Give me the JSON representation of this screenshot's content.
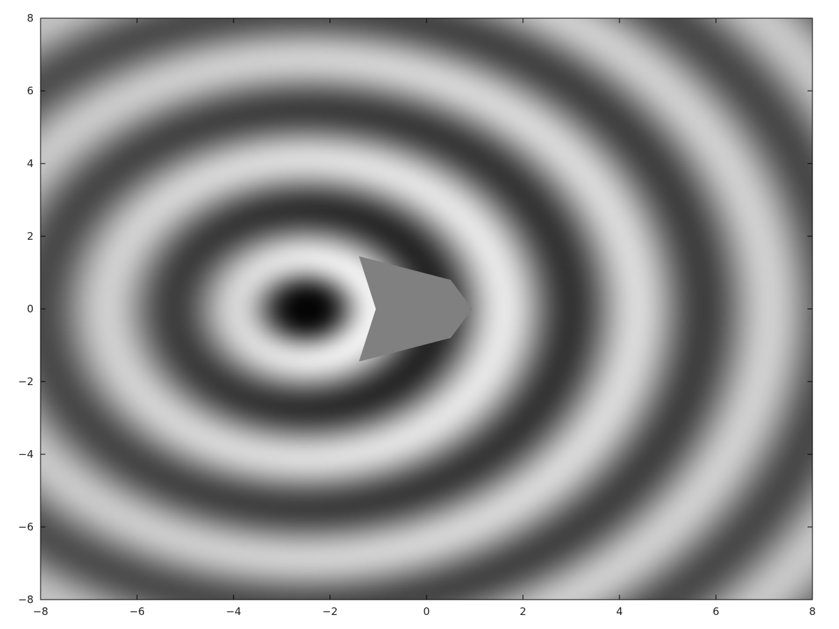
{
  "chart_data": {
    "type": "heatmap",
    "title": "",
    "xlabel": "",
    "ylabel": "",
    "xlim": [
      -8,
      8
    ],
    "ylim": [
      -8,
      8
    ],
    "x_ticks": [
      -8,
      -6,
      -4,
      -2,
      0,
      2,
      4,
      6,
      8
    ],
    "y_ticks": [
      -8,
      -6,
      -4,
      -2,
      0,
      2,
      4,
      6,
      8
    ],
    "x_tick_labels": [
      "−8",
      "−6",
      "−4",
      "−2",
      "0",
      "2",
      "4",
      "6",
      "8"
    ],
    "y_tick_labels": [
      "−8",
      "−6",
      "−4",
      "−2",
      "0",
      "2",
      "4",
      "6",
      "8"
    ],
    "colormap": "grayscale",
    "grid": false,
    "legend": "none",
    "features": {
      "wave_source": [
        -2.5,
        0
      ],
      "wavelength": 2.75,
      "darkest_point": [
        -2.5,
        0
      ],
      "scatterer_polygon": [
        [
          -1.4,
          1.45
        ],
        [
          0.5,
          0.8
        ],
        [
          0.95,
          0
        ],
        [
          0.5,
          -0.8
        ],
        [
          -1.4,
          -1.45
        ],
        [
          -1.05,
          0
        ]
      ]
    }
  }
}
